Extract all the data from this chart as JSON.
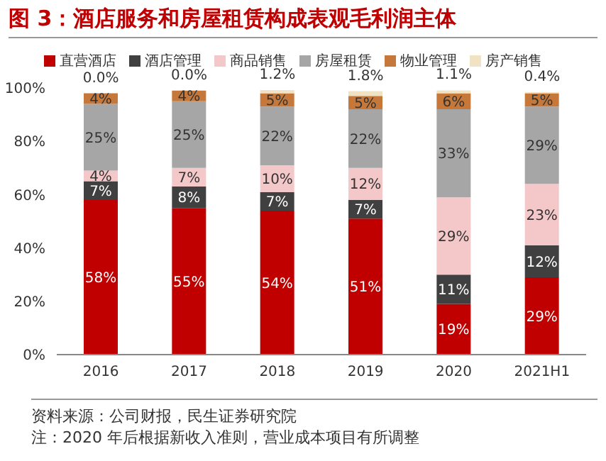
{
  "chart_data": {
    "type": "bar",
    "title": "图 3：酒店服务和房屋租赁构成表观毛利润主体",
    "stacked": true,
    "categories": [
      "2016",
      "2017",
      "2018",
      "2019",
      "2020",
      "2021H1"
    ],
    "series": [
      {
        "name": "直营酒店",
        "color": "#c00000",
        "values": [
          58,
          55,
          54,
          51,
          19,
          29
        ],
        "value_labels": [
          "58%",
          "55%",
          "54%",
          "51%",
          "19%",
          "29%"
        ]
      },
      {
        "name": "酒店管理",
        "color": "#404040",
        "values": [
          7,
          8,
          7,
          7,
          11,
          12
        ],
        "value_labels": [
          "7%",
          "8%",
          "7%",
          "7%",
          "11%",
          "12%"
        ]
      },
      {
        "name": "商品销售",
        "color": "#f4c7c9",
        "values": [
          4,
          7,
          10,
          12,
          29,
          23
        ],
        "value_labels": [
          "4%",
          "7%",
          "10%",
          "12%",
          "29%",
          "23%"
        ]
      },
      {
        "name": "房屋租赁",
        "color": "#a6a6a6",
        "values": [
          25,
          25,
          22,
          22,
          33,
          29
        ],
        "value_labels": [
          "25%",
          "25%",
          "22%",
          "22%",
          "33%",
          "29%"
        ]
      },
      {
        "name": "物业管理",
        "color": "#c5783a",
        "values": [
          4,
          4,
          5,
          5,
          6,
          5
        ],
        "value_labels": [
          "4%",
          "4%",
          "5%",
          "5%",
          "6%",
          "5%"
        ]
      },
      {
        "name": "房产销售",
        "color": "#f2e2c4",
        "values": [
          0.0,
          0.0,
          1.2,
          1.8,
          1.1,
          0.4
        ],
        "value_labels": [
          "0.0%",
          "0.0%",
          "1.2%",
          "1.8%",
          "1.1%",
          "0.4%"
        ]
      }
    ],
    "ylim": [
      0,
      100
    ],
    "yticks": [
      {
        "value": 0,
        "label": "0%"
      },
      {
        "value": 20,
        "label": "20%"
      },
      {
        "value": 40,
        "label": "40%"
      },
      {
        "value": 60,
        "label": "60%"
      },
      {
        "value": 80,
        "label": "80%"
      },
      {
        "value": 100,
        "label": "100%"
      }
    ],
    "legend": "top",
    "annotations": [
      "资料来源：公司财报，民生证券研究院",
      "注：2020 年后根据新收入准则，营业成本项目有所调整"
    ]
  }
}
